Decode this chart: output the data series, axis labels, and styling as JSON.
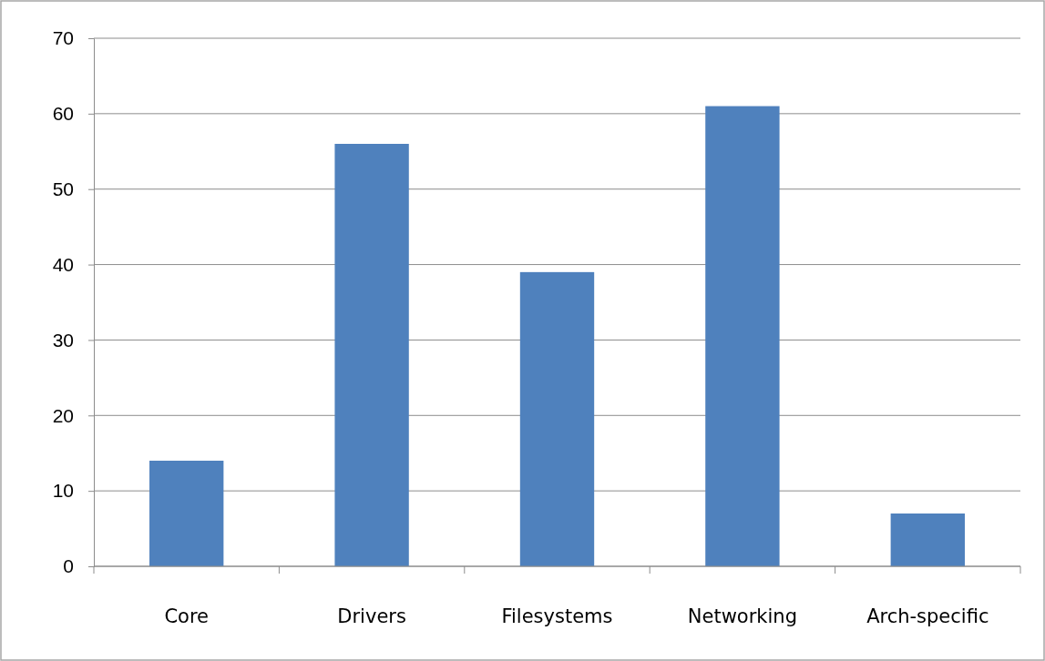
{
  "chart_data": {
    "type": "bar",
    "categories": [
      "Core",
      "Drivers",
      "Filesystems",
      "Networking",
      "Arch-specific"
    ],
    "values": [
      14,
      56,
      39,
      61,
      7
    ],
    "color": "#4f81bd",
    "ylim": [
      0,
      70
    ],
    "yticks": [
      0,
      10,
      20,
      30,
      40,
      50,
      60,
      70
    ],
    "grid": "y"
  }
}
